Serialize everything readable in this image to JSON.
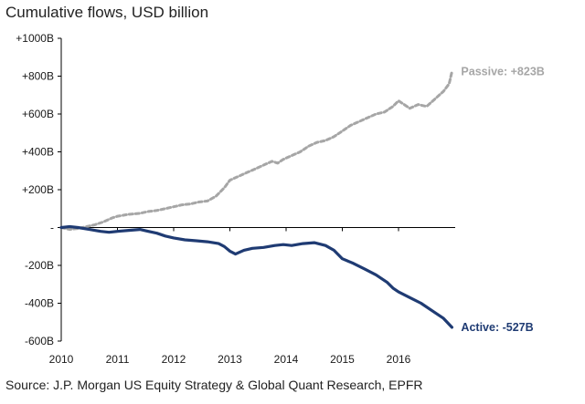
{
  "title": "Cumulative flows, USD billion",
  "source": "Source: J.P. Morgan US Equity Strategy & Global Quant Research, EPFR",
  "colors": {
    "passive": "#a6a6a6",
    "active": "#1f3b73",
    "axis": "#000000"
  },
  "chart_data": {
    "type": "line",
    "title": "Cumulative flows, USD billion",
    "xlabel": "",
    "ylabel": "",
    "xlim": [
      2010,
      2017
    ],
    "ylim": [
      -600,
      1000
    ],
    "x_ticks": [
      2010,
      2011,
      2012,
      2013,
      2014,
      2015,
      2016
    ],
    "x_tick_labels": [
      "2010",
      "2011",
      "2012",
      "2013",
      "2014",
      "2015",
      "2016"
    ],
    "y_ticks": [
      1000,
      800,
      600,
      400,
      200,
      0,
      -200,
      -400,
      -600
    ],
    "y_tick_labels": [
      "+1000B",
      "+800B",
      "+600B",
      "+400B",
      "+200B",
      "-",
      "-200B",
      "-400B",
      "-600B"
    ],
    "grid": false,
    "series": [
      {
        "name": "Passive",
        "end_label": "Passive: +823B",
        "style": "dashed",
        "color": "#a6a6a6",
        "x": [
          2010.0,
          2010.15,
          2010.3,
          2010.45,
          2010.6,
          2010.75,
          2010.9,
          2011.0,
          2011.2,
          2011.4,
          2011.55,
          2011.7,
          2011.85,
          2012.0,
          2012.15,
          2012.3,
          2012.45,
          2012.6,
          2012.75,
          2012.9,
          2013.0,
          2013.15,
          2013.3,
          2013.45,
          2013.6,
          2013.75,
          2013.85,
          2013.95,
          2014.1,
          2014.25,
          2014.4,
          2014.55,
          2014.7,
          2014.85,
          2015.0,
          2015.15,
          2015.3,
          2015.45,
          2015.6,
          2015.75,
          2015.9,
          2016.0,
          2016.1,
          2016.2,
          2016.35,
          2016.5,
          2016.65,
          2016.8,
          2016.9,
          2016.95
        ],
        "values": [
          0,
          -10,
          -5,
          5,
          15,
          30,
          50,
          60,
          70,
          75,
          85,
          90,
          100,
          110,
          120,
          125,
          135,
          140,
          165,
          210,
          250,
          270,
          290,
          310,
          330,
          350,
          340,
          360,
          380,
          400,
          430,
          450,
          460,
          480,
          510,
          540,
          560,
          580,
          600,
          610,
          640,
          670,
          650,
          630,
          650,
          640,
          680,
          720,
          760,
          823
        ]
      },
      {
        "name": "Active",
        "end_label": "Active: -527B",
        "style": "solid",
        "color": "#1f3b73",
        "x": [
          2010.0,
          2010.15,
          2010.3,
          2010.5,
          2010.7,
          2010.85,
          2011.0,
          2011.2,
          2011.4,
          2011.55,
          2011.7,
          2011.85,
          2012.0,
          2012.2,
          2012.4,
          2012.6,
          2012.8,
          2012.9,
          2013.0,
          2013.1,
          2013.25,
          2013.4,
          2013.6,
          2013.8,
          2013.95,
          2014.1,
          2014.3,
          2014.5,
          2014.7,
          2014.85,
          2015.0,
          2015.2,
          2015.4,
          2015.6,
          2015.8,
          2015.9,
          2016.0,
          2016.2,
          2016.4,
          2016.6,
          2016.8,
          2016.95
        ],
        "values": [
          0,
          5,
          0,
          -10,
          -20,
          -25,
          -20,
          -15,
          -10,
          -20,
          -30,
          -45,
          -55,
          -65,
          -70,
          -75,
          -85,
          -100,
          -125,
          -140,
          -120,
          -110,
          -105,
          -95,
          -90,
          -95,
          -85,
          -80,
          -95,
          -120,
          -165,
          -190,
          -220,
          -250,
          -290,
          -320,
          -340,
          -370,
          -400,
          -440,
          -480,
          -527
        ]
      }
    ]
  }
}
